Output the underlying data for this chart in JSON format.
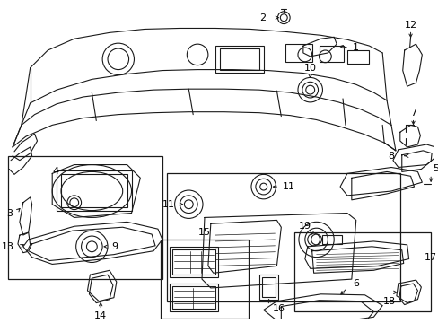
{
  "background_color": "#ffffff",
  "line_color": "#1a1a1a",
  "label_color": "#000000",
  "figure_width": 4.89,
  "figure_height": 3.6,
  "dpi": 100
}
